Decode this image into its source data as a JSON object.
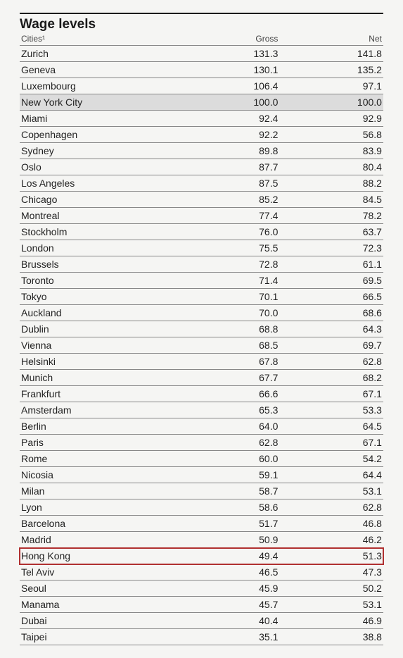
{
  "table": {
    "title": "Wage levels",
    "columns": {
      "city": "Cities¹",
      "gross": "Gross",
      "net": "Net"
    },
    "column_widths_pct": [
      46,
      27,
      27
    ],
    "column_align": [
      "left",
      "right",
      "right"
    ],
    "title_fontsize_pt": 14,
    "header_fontsize_pt": 9,
    "row_fontsize_pt": 10.5,
    "background_color": "#f5f5f3",
    "text_color": "#222222",
    "border_color": "#888888",
    "title_border_color": "#1a1a1a",
    "shaded_row_color": "#dcdcdc",
    "highlight_border_color": "#b03030",
    "rows": [
      {
        "city": "Zurich",
        "gross": "131.3",
        "net": "141.8"
      },
      {
        "city": "Geneva",
        "gross": "130.1",
        "net": "135.2"
      },
      {
        "city": "Luxembourg",
        "gross": "106.4",
        "net": "97.1"
      },
      {
        "city": "New York City",
        "gross": "100.0",
        "net": "100.0",
        "shaded": true
      },
      {
        "city": "Miami",
        "gross": "92.4",
        "net": "92.9"
      },
      {
        "city": "Copenhagen",
        "gross": "92.2",
        "net": "56.8"
      },
      {
        "city": "Sydney",
        "gross": "89.8",
        "net": "83.9"
      },
      {
        "city": "Oslo",
        "gross": "87.7",
        "net": "80.4"
      },
      {
        "city": "Los Angeles",
        "gross": "87.5",
        "net": "88.2"
      },
      {
        "city": "Chicago",
        "gross": "85.2",
        "net": "84.5"
      },
      {
        "city": "Montreal",
        "gross": "77.4",
        "net": "78.2"
      },
      {
        "city": "Stockholm",
        "gross": "76.0",
        "net": "63.7"
      },
      {
        "city": "London",
        "gross": "75.5",
        "net": "72.3"
      },
      {
        "city": "Brussels",
        "gross": "72.8",
        "net": "61.1"
      },
      {
        "city": "Toronto",
        "gross": "71.4",
        "net": "69.5"
      },
      {
        "city": "Tokyo",
        "gross": "70.1",
        "net": "66.5"
      },
      {
        "city": "Auckland",
        "gross": "70.0",
        "net": "68.6"
      },
      {
        "city": "Dublin",
        "gross": "68.8",
        "net": "64.3"
      },
      {
        "city": "Vienna",
        "gross": "68.5",
        "net": "69.7"
      },
      {
        "city": "Helsinki",
        "gross": "67.8",
        "net": "62.8"
      },
      {
        "city": "Munich",
        "gross": "67.7",
        "net": "68.2"
      },
      {
        "city": "Frankfurt",
        "gross": "66.6",
        "net": "67.1"
      },
      {
        "city": "Amsterdam",
        "gross": "65.3",
        "net": "53.3"
      },
      {
        "city": "Berlin",
        "gross": "64.0",
        "net": "64.5"
      },
      {
        "city": "Paris",
        "gross": "62.8",
        "net": "67.1"
      },
      {
        "city": "Rome",
        "gross": "60.0",
        "net": "54.2"
      },
      {
        "city": "Nicosia",
        "gross": "59.1",
        "net": "64.4"
      },
      {
        "city": "Milan",
        "gross": "58.7",
        "net": "53.1"
      },
      {
        "city": "Lyon",
        "gross": "58.6",
        "net": "62.8"
      },
      {
        "city": "Barcelona",
        "gross": "51.7",
        "net": "46.8"
      },
      {
        "city": "Madrid",
        "gross": "50.9",
        "net": "46.2"
      },
      {
        "city": "Hong Kong",
        "gross": "49.4",
        "net": "51.3",
        "highlight": true
      },
      {
        "city": "Tel Aviv",
        "gross": "46.5",
        "net": "47.3"
      },
      {
        "city": "Seoul",
        "gross": "45.9",
        "net": "50.2"
      },
      {
        "city": "Manama",
        "gross": "45.7",
        "net": "53.1"
      },
      {
        "city": "Dubai",
        "gross": "40.4",
        "net": "46.9"
      },
      {
        "city": "Taipei",
        "gross": "35.1",
        "net": "38.8"
      }
    ]
  }
}
